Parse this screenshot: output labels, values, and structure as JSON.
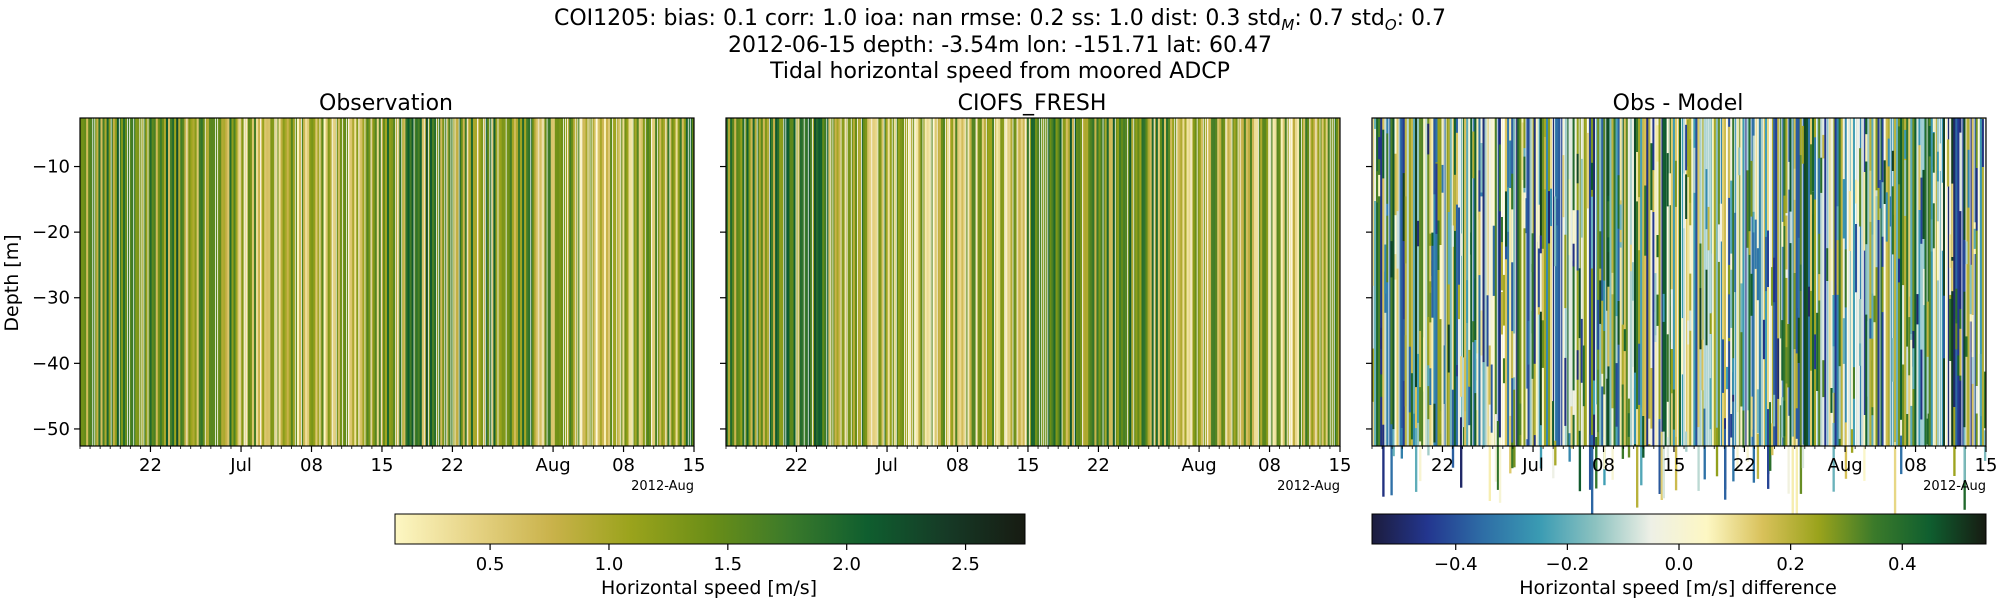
{
  "header": {
    "line1_prefix": "COI1205: bias: 0.1  corr: 1.0  ioa: nan  rmse: 0.2  ss: 1.0  dist: 0.3  std",
    "line1_sub1": "M",
    "line1_mid": ": 0.7  std",
    "line1_sub2": "O",
    "line1_suffix": ": 0.7",
    "line2": "2012-06-15 depth: -3.54m lon: -151.71 lat: 60.47",
    "line3": "Tidal horizontal speed from moored ADCP"
  },
  "colors": {
    "speed_cmap": [
      "#fdf7c3",
      "#e6d385",
      "#c9b24a",
      "#9aa31c",
      "#6b8e17",
      "#3b7a2a",
      "#0f5e2f",
      "#163a26",
      "#171b12"
    ],
    "diff_cmap": [
      "#1c1c3d",
      "#23368f",
      "#2e6ea6",
      "#3a9bb3",
      "#8cc2c0",
      "#eef0e6",
      "#fdf7c3",
      "#d8c15a",
      "#9aa31c",
      "#3b7a2a",
      "#0f5e2f",
      "#171b12"
    ]
  },
  "chart_data": [
    {
      "type": "heatmap",
      "title": "Observation",
      "ylabel": "Depth [m]",
      "xlabel": "",
      "x_range": [
        "2012-06-15",
        "2012-08-15"
      ],
      "ylim": [
        -52.6,
        -2.6
      ],
      "x_ticks": [
        "22",
        "Jul",
        "08",
        "15",
        "22",
        "Aug",
        "08",
        "15"
      ],
      "x_tick_dates": [
        "2012-06-22",
        "2012-07-01",
        "2012-07-08",
        "2012-07-15",
        "2012-07-22",
        "2012-08-01",
        "2012-08-08",
        "2012-08-15"
      ],
      "x_offset_label": "2012-Aug",
      "y_ticks": [
        -10,
        -20,
        -30,
        -40,
        -50
      ],
      "y_tick_labels": [
        "−10",
        "−20",
        "−30",
        "−40",
        "−50"
      ],
      "value_range": [
        0.1,
        2.7
      ]
    },
    {
      "type": "heatmap",
      "title": "CIOFS_FRESH",
      "x_range": [
        "2012-06-15",
        "2012-08-15"
      ],
      "ylim": [
        -52.6,
        -2.6
      ],
      "x_ticks": [
        "22",
        "Jul",
        "08",
        "15",
        "22",
        "Aug",
        "08",
        "15"
      ],
      "x_tick_dates": [
        "2012-06-22",
        "2012-07-01",
        "2012-07-08",
        "2012-07-15",
        "2012-07-22",
        "2012-08-01",
        "2012-08-08",
        "2012-08-15"
      ],
      "x_offset_label": "2012-Aug",
      "y_ticks": [
        -10,
        -20,
        -30,
        -40,
        -50
      ],
      "value_range": [
        0.1,
        2.7
      ]
    },
    {
      "type": "heatmap",
      "title": "Obs - Model",
      "x_range": [
        "2012-06-15",
        "2012-08-15"
      ],
      "ylim": [
        -52.6,
        -2.6
      ],
      "x_ticks": [
        "22",
        "Jul",
        "08",
        "15",
        "22",
        "Aug",
        "08",
        "15"
      ],
      "x_tick_dates": [
        "2012-06-22",
        "2012-07-01",
        "2012-07-08",
        "2012-07-15",
        "2012-07-22",
        "2012-08-01",
        "2012-08-08",
        "2012-08-15"
      ],
      "x_offset_label": "2012-Aug",
      "y_ticks": [
        -10,
        -20,
        -30,
        -40,
        -50
      ],
      "value_range": [
        -0.55,
        0.55
      ]
    }
  ],
  "colorbars": [
    {
      "label": "Horizontal speed [m/s]",
      "range": [
        0.1,
        2.75
      ],
      "ticks": [
        0.5,
        1.0,
        1.5,
        2.0,
        2.5
      ],
      "tick_labels": [
        "0.5",
        "1.0",
        "1.5",
        "2.0",
        "2.5"
      ]
    },
    {
      "label": "Horizontal speed [m/s] difference",
      "range": [
        -0.55,
        0.55
      ],
      "ticks": [
        -0.4,
        -0.2,
        0.0,
        0.2,
        0.4
      ],
      "tick_labels": [
        "−0.4",
        "−0.2",
        "0.0",
        "0.2",
        "0.4"
      ]
    }
  ]
}
